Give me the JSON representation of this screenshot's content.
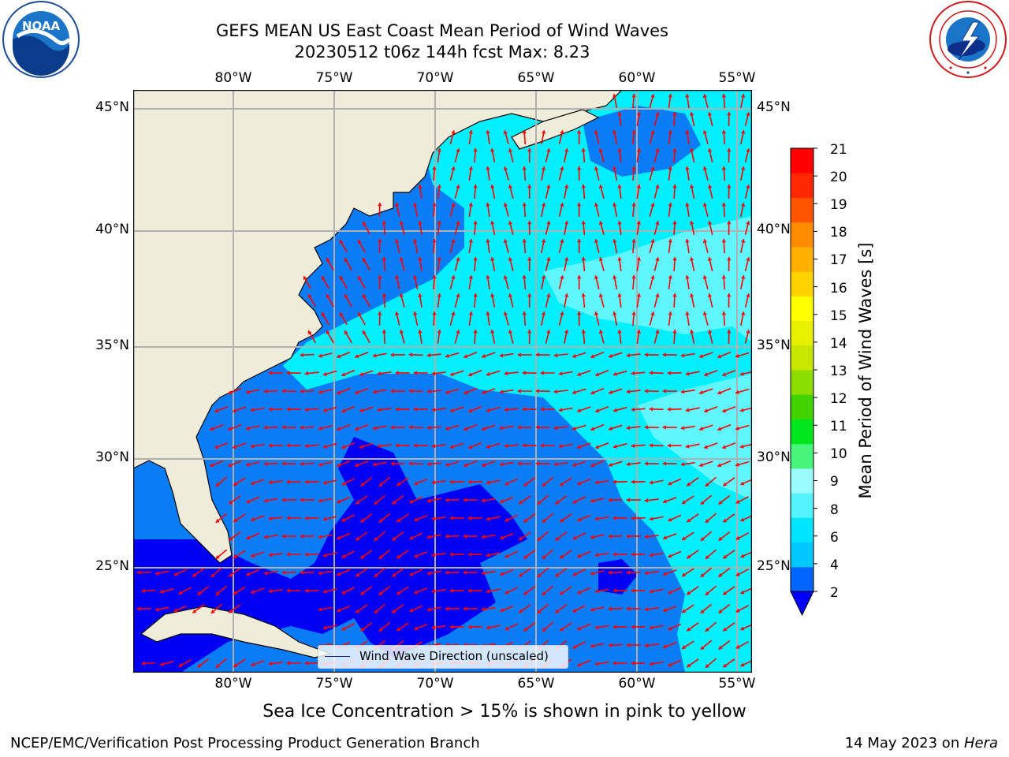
{
  "header": {
    "title_line1": "GEFS MEAN US East Coast Mean Period of Wind Waves",
    "title_line2": "20230512 t06z 144h fcst   Max: 8.23"
  },
  "logos": {
    "left": "NOAA",
    "left_ring": "NATIONAL OCEANIC AND ATMOSPHERIC ADMINISTRATION · U.S. DEPARTMENT OF COMMERCE",
    "right_ring": "NATIONAL WEATHER SERVICE"
  },
  "map": {
    "lon_labels": [
      "80°W",
      "75°W",
      "70°W",
      "65°W",
      "60°W",
      "55°W"
    ],
    "lat_labels": [
      "45°N",
      "40°N",
      "35°N",
      "30°N",
      "25°N"
    ],
    "lon_range": [
      -85,
      -54.3
    ],
    "lat_range": [
      20.5,
      46
    ],
    "grid": true,
    "colors": {
      "land": "#efedda",
      "grid": "#b0b0b0",
      "arrow": "#ff0000"
    },
    "legend_label": "Wind Wave Direction (unscaled)"
  },
  "colorbar": {
    "label": "Mean Period of Wind Waves [s]",
    "ticks": [
      "2",
      "4",
      "6",
      "8",
      "9",
      "10",
      "11",
      "12",
      "13",
      "14",
      "15",
      "16",
      "17",
      "18",
      "19",
      "20",
      "21"
    ],
    "extend": "min",
    "colors": [
      "#0066ff",
      "#00c8ff",
      "#00e5ff",
      "#55f2ff",
      "#9cfbff",
      "#46f57a",
      "#00e61e",
      "#41d200",
      "#8cdc00",
      "#c8e600",
      "#e6f000",
      "#ffff00",
      "#ffd200",
      "#ffaf00",
      "#ff8c00",
      "#ff5500",
      "#ff2800",
      "#ff0000"
    ],
    "under_color": "#0000ff"
  },
  "caption": "Sea Ice Concentration > 15% is shown in pink to yellow",
  "footer": {
    "left": "NCEP/EMC/Verification Post Processing Product Generation Branch",
    "right_date": "14 May 2023 on ",
    "right_host": "Hera"
  }
}
